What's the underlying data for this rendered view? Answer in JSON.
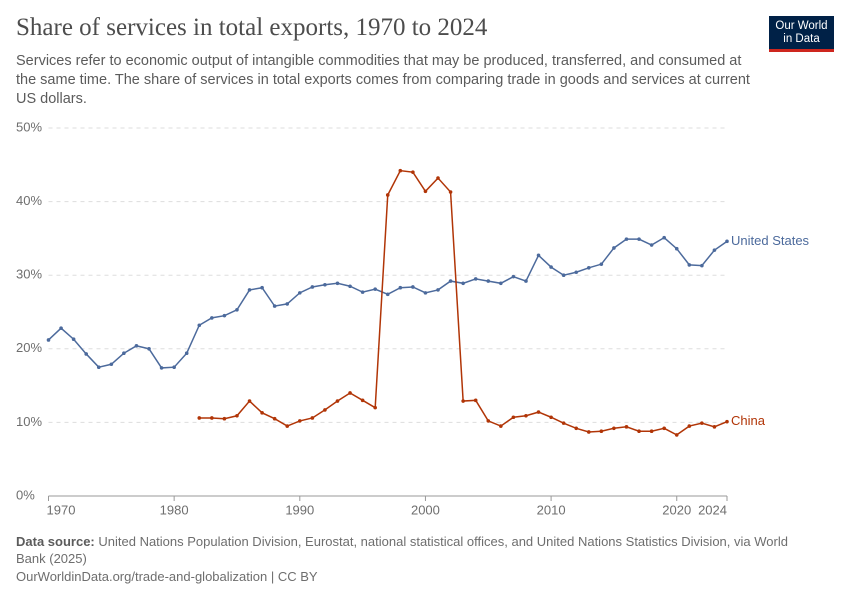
{
  "chart_data": {
    "type": "line",
    "title": "Share of services in total exports, 1970 to 2024",
    "subtitle": "Services refer to economic output of intangible commodities that may be produced, transferred, and consumed at the same time. The share of services in total exports comes from comparing trade in goods and services at current US dollars.",
    "logo": [
      "Our World",
      "in Data"
    ],
    "source_label": "Data source:",
    "source": "United Nations Population Division, Eurostat, national statistical offices, and United Nations Statistics Division, via World Bank (2025)",
    "footer": "OurWorldinData.org/trade-and-globalization | CC BY",
    "x": [
      1970,
      1971,
      1972,
      1973,
      1974,
      1975,
      1976,
      1977,
      1978,
      1979,
      1980,
      1981,
      1982,
      1983,
      1984,
      1985,
      1986,
      1987,
      1988,
      1989,
      1990,
      1991,
      1992,
      1993,
      1994,
      1995,
      1996,
      1997,
      1998,
      1999,
      2000,
      2001,
      2002,
      2003,
      2004,
      2005,
      2006,
      2007,
      2008,
      2009,
      2010,
      2011,
      2012,
      2013,
      2014,
      2015,
      2016,
      2017,
      2018,
      2019,
      2020,
      2021,
      2022,
      2023,
      2024
    ],
    "xlim": [
      1970,
      2024
    ],
    "xticks": [
      1970,
      1980,
      1990,
      2000,
      2010,
      2020,
      2024
    ],
    "ylim": [
      0,
      50
    ],
    "yticks": [
      {
        "value": 0,
        "label": "0%"
      },
      {
        "value": 10,
        "label": "10%"
      },
      {
        "value": 20,
        "label": "20%"
      },
      {
        "value": 30,
        "label": "30%"
      },
      {
        "value": 40,
        "label": "40%"
      },
      {
        "value": 50,
        "label": "50%"
      }
    ],
    "grid": true,
    "series": [
      {
        "name": "United States",
        "color": "#4c6a9c",
        "values": [
          21.2,
          22.8,
          21.3,
          19.3,
          17.5,
          17.9,
          19.4,
          20.4,
          20.0,
          17.4,
          17.5,
          19.4,
          23.2,
          24.2,
          24.5,
          25.3,
          28.0,
          28.3,
          25.8,
          26.1,
          27.6,
          28.4,
          28.7,
          28.9,
          28.5,
          27.7,
          28.1,
          27.4,
          28.3,
          28.4,
          27.6,
          28.0,
          29.2,
          28.9,
          29.5,
          29.2,
          28.9,
          29.8,
          29.2,
          32.7,
          31.1,
          30.0,
          30.4,
          31.0,
          31.5,
          33.7,
          34.9,
          34.9,
          34.1,
          35.1,
          33.6,
          31.4,
          31.3,
          33.4,
          34.6
        ]
      },
      {
        "name": "China",
        "color": "#b13507",
        "values": [
          null,
          null,
          null,
          null,
          null,
          null,
          null,
          null,
          null,
          null,
          null,
          null,
          10.6,
          10.6,
          10.5,
          10.9,
          12.9,
          11.3,
          10.5,
          9.5,
          10.2,
          10.6,
          11.7,
          12.9,
          14.0,
          13.0,
          12.0,
          40.9,
          44.2,
          44.0,
          41.4,
          43.2,
          41.3,
          12.9,
          13.0,
          10.2,
          9.5,
          10.7,
          10.9,
          11.4,
          10.7,
          9.9,
          9.2,
          8.7,
          8.8,
          9.2,
          9.4,
          8.8,
          8.8,
          9.2,
          8.3,
          9.5,
          9.9,
          9.4,
          10.1
        ]
      }
    ]
  }
}
